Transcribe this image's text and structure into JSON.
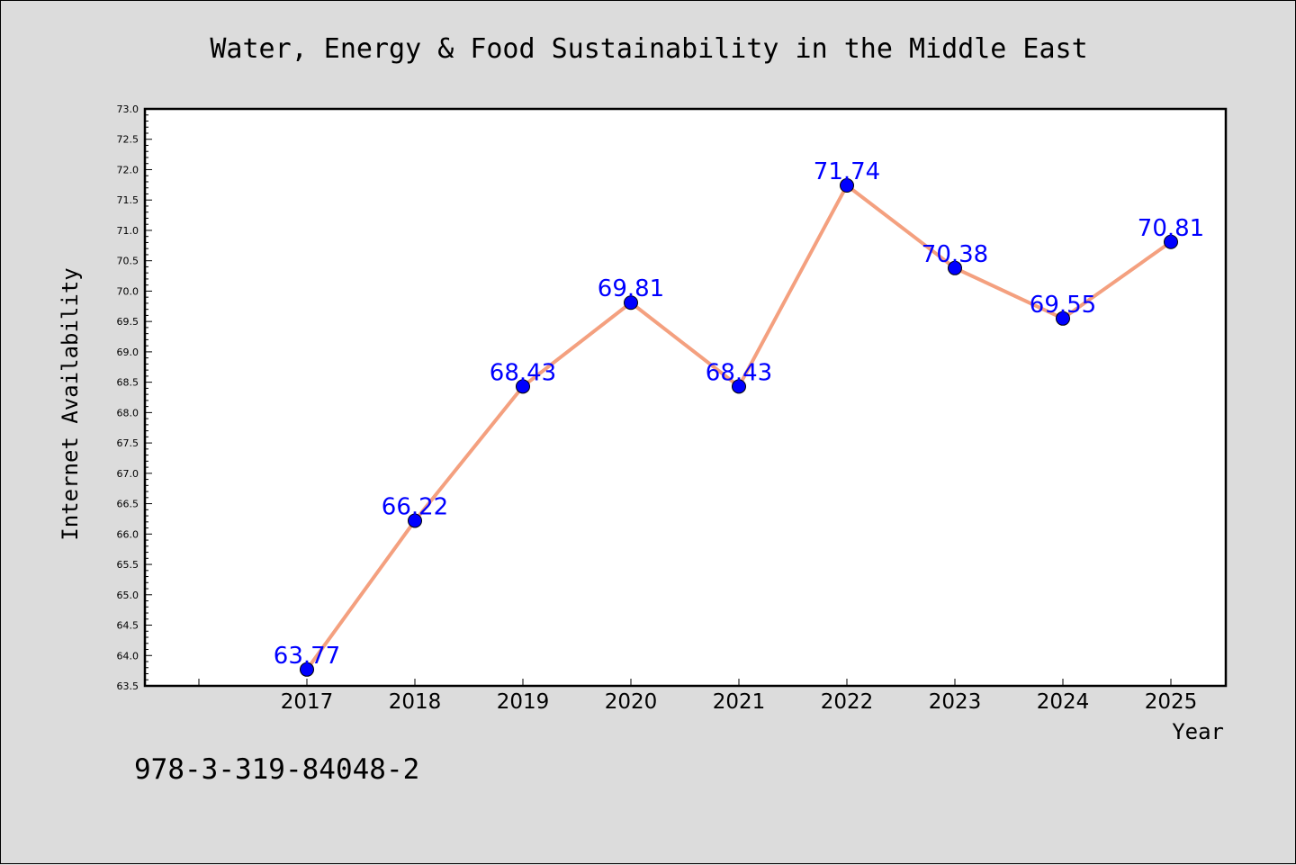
{
  "chart_data": {
    "type": "line",
    "title": "Water, Energy & Food Sustainability in the Middle East",
    "xlabel": "Year",
    "ylabel": "Internet Availability",
    "categories": [
      "2017",
      "2018",
      "2019",
      "2020",
      "2021",
      "2022",
      "2023",
      "2024",
      "2025"
    ],
    "values": [
      63.77,
      66.22,
      68.43,
      69.81,
      68.43,
      71.74,
      70.38,
      69.55,
      70.81
    ],
    "data_labels": [
      "63.77",
      "66.22",
      "68.43",
      "69.81",
      "68.43",
      "71.74",
      "70.38",
      "69.55",
      "70.81"
    ],
    "ylim": [
      63.5,
      73.0
    ],
    "yticks": [
      "63.5",
      "64.0",
      "64.5",
      "65.0",
      "65.5",
      "66.0",
      "66.5",
      "67.0",
      "67.5",
      "68.0",
      "68.5",
      "69.0",
      "69.5",
      "70.0",
      "70.5",
      "71.0",
      "71.5",
      "72.0",
      "72.5",
      "73.0"
    ],
    "grid": false,
    "line_color": "#f4a07f",
    "marker_color": "#0000ff",
    "label_color": "#0000ff"
  },
  "footer": {
    "isbn": "978-3-319-84048-2"
  }
}
